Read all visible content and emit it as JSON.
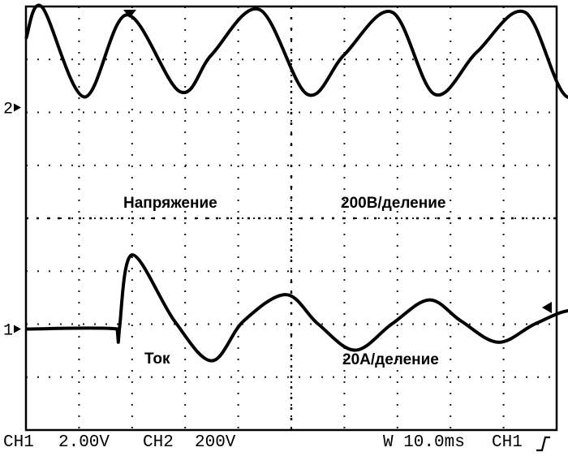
{
  "chart_data": [
    {
      "type": "line",
      "channel": "CH1",
      "marker": "2",
      "annotations": [
        "Напряжение",
        "200В/деление"
      ],
      "time_ms": [
        0,
        3,
        11,
        19,
        29,
        35,
        44,
        53,
        60,
        69,
        77,
        85,
        94,
        102,
        110
      ],
      "values_div": [
        2.6,
        3.8,
        0.4,
        3.5,
        0.6,
        2.0,
        3.7,
        0.5,
        2.0,
        3.6,
        0.5,
        2.1,
        3.6,
        0.4,
        1.9
      ],
      "ylim_div": [
        -4,
        4
      ]
    },
    {
      "type": "line",
      "channel": "CH2",
      "marker": "1",
      "annotations": [
        "Ток",
        "20А/деление"
      ],
      "time_ms": [
        0,
        17.2,
        17.4,
        17.6,
        20,
        28,
        35,
        41,
        49,
        55,
        62,
        69,
        76,
        82,
        89,
        96,
        103,
        108.6
      ],
      "values_div": [
        0,
        0,
        -0.5,
        0,
        2.8,
        0.3,
        -1.2,
        0.3,
        1.3,
        0.2,
        -0.8,
        0.2,
        1.1,
        0.3,
        -0.5,
        0.2,
        0.7,
        0.1
      ],
      "ylim_div": [
        -4,
        4
      ]
    }
  ],
  "status_bar": {
    "ch1_label": "CH1",
    "ch1_scale": "2.00V",
    "ch2_label": "CH2",
    "ch2_scale": "200V",
    "timebase": "W 10.0ms",
    "trigger_source": "CH1",
    "trigger_slope_icon": "rising-edge-icon"
  },
  "colors": {
    "trace": "#000000",
    "background": "#ffffff",
    "grid": "#000000"
  }
}
